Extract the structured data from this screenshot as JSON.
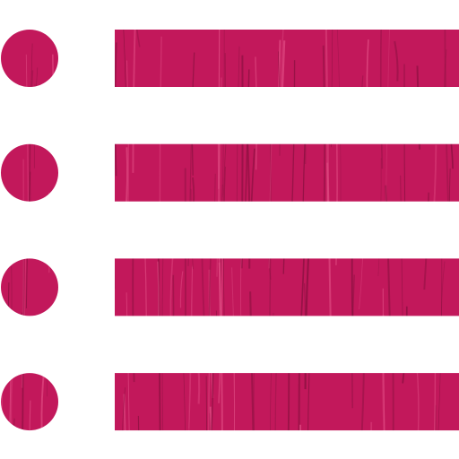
{
  "icon": {
    "name": "list-icon",
    "color": "#c2185b",
    "streak_dark": "#8a0f3f",
    "streak_light": "#e04a82",
    "texture": "vertical-wood-grain",
    "rows": [
      {
        "bullet": "bullet-dot",
        "bar": "list-line"
      },
      {
        "bullet": "bullet-dot",
        "bar": "list-line"
      },
      {
        "bullet": "bullet-dot",
        "bar": "list-line"
      },
      {
        "bullet": "bullet-dot",
        "bar": "list-line"
      }
    ]
  }
}
